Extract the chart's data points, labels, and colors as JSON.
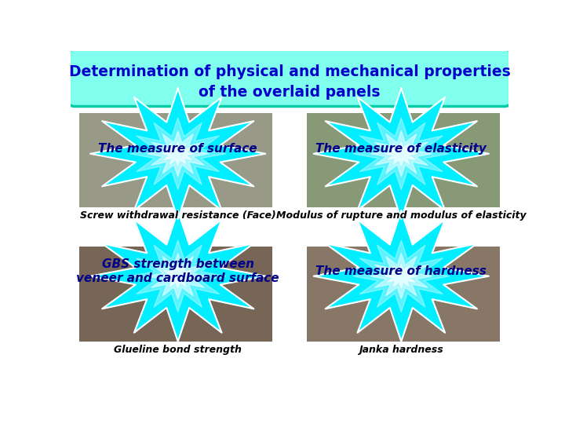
{
  "title_line1": "Determination of physical and mechanical properties",
  "title_line2": "of the overlaid panels",
  "title_color": "#0000CC",
  "star_color": "#00EEFF",
  "star_edge_color": "#FFFFFF",
  "labels": [
    "The measure of surface",
    "The measure of elasticity",
    "GBS strength between\nveneer and cardboard surface",
    "The measure of hardness"
  ],
  "label_fontsize": 11,
  "captions": [
    "Screw withdrawal resistance (Face)",
    "Modulus of rupture and modulus of elasticity",
    "Glueline bond strength",
    "Janka hardness"
  ],
  "label_color": "#00008B",
  "caption_color": "#000000",
  "bg_color": "#FFFFFF",
  "star_points": 12,
  "star_outer_r": 0.2,
  "star_inner_r": 0.1,
  "title_bg": "#80FFEE",
  "title_border": "#00CCAA"
}
